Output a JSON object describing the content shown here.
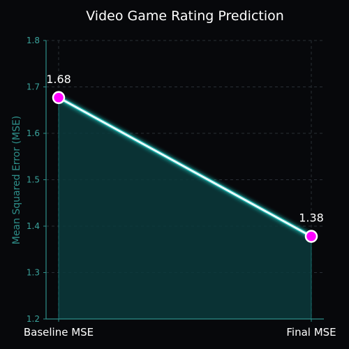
{
  "chart_data": {
    "type": "line",
    "title": "Video Game Rating Prediction",
    "xlabel": "",
    "ylabel": "Mean Squared Error (MSE)",
    "categories": [
      "Baseline MSE",
      "Final MSE"
    ],
    "series": [
      {
        "values": [
          1.677,
          1.378
        ],
        "data_labels": [
          "1.68",
          "1.38"
        ]
      }
    ],
    "ylim": [
      1.2,
      1.8
    ],
    "yticks": [
      1.2,
      1.3,
      1.4,
      1.5,
      1.6,
      1.7,
      1.8
    ],
    "ytick_labels": [
      "1.2",
      "1.3",
      "1.4",
      "1.5",
      "1.6",
      "1.7",
      "1.8"
    ],
    "grid": true,
    "area_fill": true
  },
  "colors": {
    "background": "#07080b",
    "line": "#e8ffff",
    "line_glow": "#1fb9b3",
    "area_fill": "#0b3a3c",
    "marker_fill": "#ff00ff",
    "marker_edge": "#ffffff",
    "axis": "#2e8f8a",
    "grid": "#2a2f36"
  }
}
